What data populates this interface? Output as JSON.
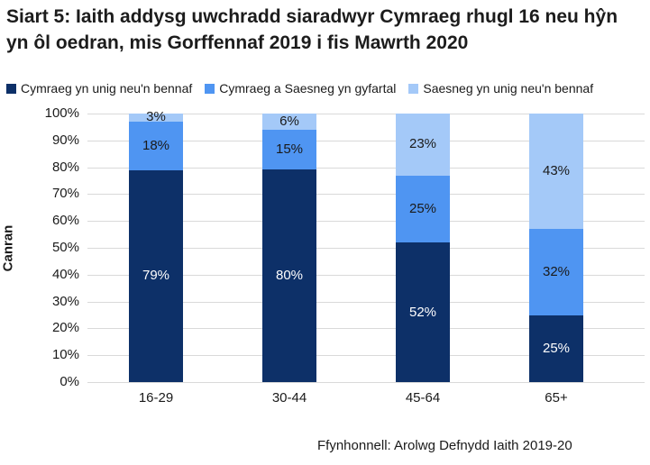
{
  "title": "Siart 5: Iaith addysg uwchradd siaradwyr Cymraeg rhugl 16 neu hŷn yn ôl oedran, mis Gorffennaf 2019 i fis Mawrth 2020",
  "source": "Ffynhonnell: Arolwg Defnydd Iaith 2019-20",
  "colors": {
    "dark_navy": "#0d3068",
    "medium_blue": "#4f95f2",
    "light_blue": "#a4c9f8",
    "gridline": "#d9d9d9",
    "label_on_dark": "#ffffff",
    "label_on_light": "#1a1a1a"
  },
  "chart_data": {
    "type": "bar",
    "stacked": true,
    "title": "Siart 5: Iaith addysg uwchradd siaradwyr Cymraeg rhugl 16 neu hŷn yn ôl oedran, mis Gorffennaf 2019 i fis Mawrth 2020",
    "categories": [
      "16-29",
      "30-44",
      "45-64",
      "65+"
    ],
    "series": [
      {
        "name": "Cymraeg yn unig neu'n bennaf",
        "color": "#0d3068",
        "label_color": "#ffffff",
        "values": [
          79,
          80,
          52,
          25
        ],
        "data_labels": [
          "79%",
          "80%",
          "52%",
          "25%"
        ]
      },
      {
        "name": "Cymraeg a Saesneg yn gyfartal",
        "color": "#4f95f2",
        "label_color": "#1a1a1a",
        "values": [
          18,
          15,
          25,
          32
        ],
        "data_labels": [
          "18%",
          "15%",
          "25%",
          "32%"
        ]
      },
      {
        "name": "Saesneg yn unig neu'n bennaf",
        "color": "#a4c9f8",
        "label_color": "#1a1a1a",
        "values": [
          3,
          6,
          23,
          43
        ],
        "data_labels": [
          "3%",
          "6%",
          "23%",
          "43%"
        ]
      }
    ],
    "xlabel": "",
    "ylabel": "Canran",
    "ylim": [
      0,
      100
    ],
    "y_ticks": [
      "0%",
      "10%",
      "20%",
      "30%",
      "40%",
      "50%",
      "60%",
      "70%",
      "80%",
      "90%",
      "100%"
    ],
    "grid": true,
    "legend_position": "top"
  }
}
